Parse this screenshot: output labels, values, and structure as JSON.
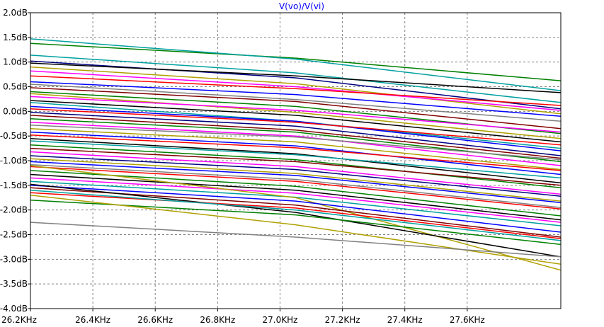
{
  "chart_data": {
    "type": "line",
    "title": "V(vo)/V(vi)",
    "title_color": "#0000ff",
    "xlabel": "",
    "ylabel": "",
    "xlim": [
      26.2,
      27.9
    ],
    "ylim": [
      -4.0,
      2.0
    ],
    "grid": true,
    "x_ticks": [
      26.2,
      26.4,
      26.6,
      26.8,
      27.0,
      27.2,
      27.4,
      27.6
    ],
    "x_tick_labels": [
      "26.2KHz",
      "26.4KHz",
      "26.6KHz",
      "26.8KHz",
      "27.0KHz",
      "27.2KHz",
      "27.4KHz",
      "27.6KHz"
    ],
    "y_ticks": [
      2.0,
      1.5,
      1.0,
      0.5,
      0.0,
      -0.5,
      -1.0,
      -1.5,
      -2.0,
      -2.5,
      -3.0,
      -3.5,
      -4.0
    ],
    "y_tick_labels": [
      "2.0dB",
      "1.5dB",
      "1.0dB",
      "0.5dB",
      "0.0dB",
      "-0.5dB",
      "-1.0dB",
      "-1.5dB",
      "-2.0dB",
      "-2.5dB",
      "-3.0dB",
      "-3.5dB",
      "-4.0dB"
    ],
    "series": [
      {
        "color": "#008000",
        "x": [
          26.2,
          27.05,
          27.9
        ],
        "y": [
          1.38,
          1.08,
          0.62
        ]
      },
      {
        "color": "#00a0a0",
        "x": [
          26.2,
          27.05,
          27.9
        ],
        "y": [
          1.47,
          1.06,
          0.42
        ]
      },
      {
        "color": "#00a0a0",
        "x": [
          26.2,
          27.05,
          27.9
        ],
        "y": [
          1.14,
          0.78,
          0.18
        ]
      },
      {
        "color": "#000080",
        "x": [
          26.2,
          27.05,
          27.9
        ],
        "y": [
          1.02,
          0.68,
          0.05
        ]
      },
      {
        "color": "#000000",
        "x": [
          26.2,
          27.05,
          27.9
        ],
        "y": [
          0.98,
          0.72,
          0.38
        ]
      },
      {
        "color": "#b0a000",
        "x": [
          26.2,
          27.05,
          27.9
        ],
        "y": [
          0.9,
          0.56,
          -0.05
        ]
      },
      {
        "color": "#ff00ff",
        "x": [
          26.2,
          27.05,
          27.9
        ],
        "y": [
          0.82,
          0.5,
          0.02
        ]
      },
      {
        "color": "#ff0000",
        "x": [
          26.2,
          27.05,
          27.9
        ],
        "y": [
          0.72,
          0.46,
          0.12
        ]
      },
      {
        "color": "#0000ff",
        "x": [
          26.2,
          27.05,
          27.9
        ],
        "y": [
          0.6,
          0.34,
          -0.1
        ]
      },
      {
        "color": "#808080",
        "x": [
          26.2,
          27.05,
          27.9
        ],
        "y": [
          0.55,
          0.24,
          -0.2
        ]
      },
      {
        "color": "#800000",
        "x": [
          26.2,
          27.05,
          27.9
        ],
        "y": [
          0.48,
          0.2,
          -0.35
        ]
      },
      {
        "color": "#008000",
        "x": [
          26.2,
          27.05,
          27.9
        ],
        "y": [
          0.4,
          0.1,
          -0.45
        ]
      },
      {
        "color": "#b0a000",
        "x": [
          26.2,
          27.05,
          27.9
        ],
        "y": [
          0.36,
          -0.02,
          -0.55
        ]
      },
      {
        "color": "#ff00ff",
        "x": [
          26.2,
          27.05,
          27.9
        ],
        "y": [
          0.3,
          0.02,
          -0.42
        ]
      },
      {
        "color": "#000000",
        "x": [
          26.2,
          27.05,
          27.9
        ],
        "y": [
          0.22,
          -0.08,
          -0.62
        ]
      },
      {
        "color": "#00a0a0",
        "x": [
          26.2,
          27.05,
          27.9
        ],
        "y": [
          0.18,
          -0.2,
          -0.75
        ]
      },
      {
        "color": "#0000ff",
        "x": [
          26.2,
          27.05,
          27.9
        ],
        "y": [
          0.1,
          -0.2,
          -0.8
        ]
      },
      {
        "color": "#ff0000",
        "x": [
          26.2,
          27.05,
          27.9
        ],
        "y": [
          0.05,
          -0.22,
          -0.68
        ]
      },
      {
        "color": "#000080",
        "x": [
          26.2,
          27.05,
          27.9
        ],
        "y": [
          -0.02,
          -0.3,
          -0.9
        ]
      },
      {
        "color": "#800000",
        "x": [
          26.2,
          27.05,
          27.9
        ],
        "y": [
          -0.08,
          -0.38,
          -0.95
        ]
      },
      {
        "color": "#008000",
        "x": [
          26.2,
          27.05,
          27.9
        ],
        "y": [
          -0.15,
          -0.42,
          -1.02
        ]
      },
      {
        "color": "#ff00ff",
        "x": [
          26.2,
          27.05,
          27.9
        ],
        "y": [
          -0.22,
          -0.5,
          -1.1
        ]
      },
      {
        "color": "#808080",
        "x": [
          26.2,
          27.05,
          27.9
        ],
        "y": [
          -0.28,
          -0.52,
          -0.98
        ]
      },
      {
        "color": "#b0a000",
        "x": [
          26.2,
          27.05,
          27.9
        ],
        "y": [
          -0.35,
          -0.62,
          -1.18
        ]
      },
      {
        "color": "#0000ff",
        "x": [
          26.2,
          27.05,
          27.9
        ],
        "y": [
          -0.42,
          -0.7,
          -1.28
        ]
      },
      {
        "color": "#ff0000",
        "x": [
          26.2,
          27.05,
          27.9
        ],
        "y": [
          -0.48,
          -0.74,
          -1.2
        ]
      },
      {
        "color": "#000000",
        "x": [
          26.2,
          27.05,
          27.9
        ],
        "y": [
          -0.55,
          -0.86,
          -1.45
        ]
      },
      {
        "color": "#00a0a0",
        "x": [
          26.2,
          27.05,
          27.9
        ],
        "y": [
          -0.6,
          -0.88,
          -1.35
        ]
      },
      {
        "color": "#008000",
        "x": [
          26.2,
          27.05,
          27.9
        ],
        "y": [
          -0.68,
          -0.98,
          -1.55
        ]
      },
      {
        "color": "#800000",
        "x": [
          26.2,
          27.05,
          27.9
        ],
        "y": [
          -0.75,
          -1.02,
          -1.5
        ]
      },
      {
        "color": "#ff00ff",
        "x": [
          26.2,
          27.05,
          27.9
        ],
        "y": [
          -0.82,
          -1.12,
          -1.68
        ]
      },
      {
        "color": "#000080",
        "x": [
          26.2,
          27.05,
          27.9
        ],
        "y": [
          -0.9,
          -1.18,
          -1.72
        ]
      },
      {
        "color": "#b0a000",
        "x": [
          26.2,
          27.05,
          27.9
        ],
        "y": [
          -0.96,
          -1.26,
          -1.82
        ]
      },
      {
        "color": "#0000ff",
        "x": [
          26.2,
          27.05,
          27.9
        ],
        "y": [
          -1.02,
          -1.3,
          -1.85
        ]
      },
      {
        "color": "#808080",
        "x": [
          26.2,
          27.05,
          27.9
        ],
        "y": [
          -1.08,
          -1.38,
          -1.95
        ]
      },
      {
        "color": "#ff0000",
        "x": [
          26.2,
          27.05,
          27.9
        ],
        "y": [
          -1.12,
          -1.42,
          -1.98
        ]
      },
      {
        "color": "#008000",
        "x": [
          26.2,
          27.05,
          27.9
        ],
        "y": [
          -1.2,
          -1.52,
          -2.12
        ]
      },
      {
        "color": "#000000",
        "x": [
          26.2,
          27.05,
          27.9
        ],
        "y": [
          -1.28,
          -1.6,
          -2.2
        ]
      },
      {
        "color": "#ff00ff",
        "x": [
          26.2,
          27.05,
          27.9
        ],
        "y": [
          -1.35,
          -1.66,
          -2.25
        ]
      },
      {
        "color": "#00a0a0",
        "x": [
          26.2,
          27.05,
          27.9
        ],
        "y": [
          -1.42,
          -1.74,
          -2.32
        ]
      },
      {
        "color": "#b0a000",
        "x": [
          26.2,
          27.05,
          27.9
        ],
        "y": [
          -1.1,
          -1.75,
          -3.22
        ]
      },
      {
        "color": "#0000ff",
        "x": [
          26.2,
          27.05,
          27.9
        ],
        "y": [
          -1.5,
          -1.82,
          -2.45
        ]
      },
      {
        "color": "#800000",
        "x": [
          26.2,
          27.05,
          27.9
        ],
        "y": [
          -1.55,
          -1.9,
          -2.55
        ]
      },
      {
        "color": "#000000",
        "x": [
          26.2,
          27.05,
          27.9
        ],
        "y": [
          -1.48,
          -2.05,
          -2.95
        ]
      },
      {
        "color": "#008000",
        "x": [
          26.2,
          27.05,
          27.9
        ],
        "y": [
          -1.8,
          -2.1,
          -2.7
        ]
      },
      {
        "color": "#ff0000",
        "x": [
          26.2,
          27.05,
          27.9
        ],
        "y": [
          -1.65,
          -1.96,
          -2.58
        ]
      },
      {
        "color": "#b0a000",
        "x": [
          26.2,
          27.05,
          27.9
        ],
        "y": [
          -1.7,
          -2.3,
          -3.1
        ]
      },
      {
        "color": "#00a0a0",
        "x": [
          26.2,
          27.05,
          27.9
        ],
        "y": [
          -1.6,
          -2.0,
          -2.62
        ]
      },
      {
        "color": "#808080",
        "x": [
          26.2,
          27.05,
          27.9
        ],
        "y": [
          -2.25,
          -2.55,
          -2.95
        ]
      }
    ]
  }
}
